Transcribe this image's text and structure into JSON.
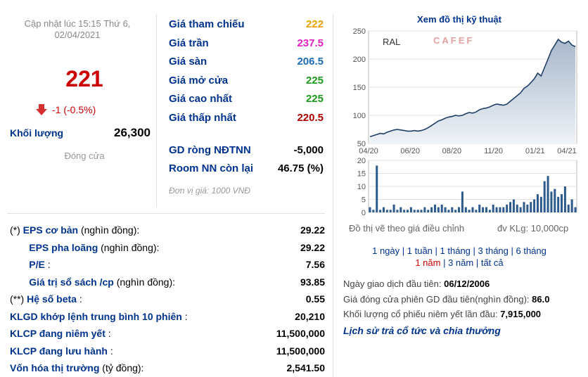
{
  "update": {
    "line1": "Cập nhật lúc 15:15 Thứ 6,",
    "line2": "02/04/2021"
  },
  "price": "221",
  "change": "-1 (-0.5%)",
  "volume": {
    "label": "Khối lượng",
    "value": "26,300"
  },
  "status": "Đóng cửa",
  "prices": [
    {
      "label": "Giá tham chiếu",
      "value": "222",
      "color": "#f0a000"
    },
    {
      "label": "Giá trần",
      "value": "237.5",
      "color": "#e020c0"
    },
    {
      "label": "Giá sàn",
      "value": "206.5",
      "color": "#1a6db5"
    },
    {
      "label": "Giá mở cửa",
      "value": "225",
      "color": "#1a9a1a"
    },
    {
      "label": "Giá cao nhất",
      "value": "225",
      "color": "#1a9a1a"
    },
    {
      "label": "Giá thấp nhất",
      "value": "220.5",
      "color": "#b00000"
    }
  ],
  "foreign": [
    {
      "label": "GD ròng NĐTNN",
      "value": "-5,000"
    },
    {
      "label": "Room NN còn lại",
      "value": "46.75 (%)"
    }
  ],
  "unit_note": "Đơn vị giá: 1000 VNĐ",
  "fundamentals": [
    {
      "prefix": "(*)",
      "label": "EPS cơ bản",
      "suffix": "(nghìn đồng):",
      "value": "29.22"
    },
    {
      "prefix": "",
      "label": "EPS pha loãng",
      "suffix": "(nghìn đồng):",
      "value": "29.22"
    },
    {
      "prefix": "",
      "label": "P/E",
      "suffix": ":",
      "value": "7.56"
    },
    {
      "prefix": "",
      "label": "Giá trị sổ sách /cp",
      "suffix": "(nghìn đồng):",
      "value": "93.85"
    },
    {
      "prefix": "(**)",
      "label": "Hệ số beta",
      "suffix": ":",
      "value": "0.55"
    },
    {
      "prefix": "",
      "label": "KLGD khớp lệnh trung bình 10 phiên",
      "suffix": ":",
      "value": "20,210"
    },
    {
      "prefix": "",
      "label": "KLCP đang niêm yết",
      "suffix": ":",
      "value": "11,500,000"
    },
    {
      "prefix": "",
      "label": "KLCP đang lưu hành",
      "suffix": ":",
      "value": "11,500,000"
    },
    {
      "prefix": "",
      "label": "Vốn hóa thị trường",
      "suffix": "(tỷ đồng):",
      "value": "2,541.50"
    }
  ],
  "chart": {
    "title": "Xem đồ thị kỹ thuật",
    "ticker": "RAL",
    "watermark": "CAFEF",
    "note_left": "Đồ thị vẽ theo giá điều chỉnh",
    "note_right": "đv KLg: 10,000cp"
  },
  "chart_data": {
    "type": "area",
    "x_ticks": [
      "04/20",
      "06/20",
      "08/20",
      "11/20",
      "01/21",
      "04/21"
    ],
    "y_ticks": [
      50,
      100,
      150,
      200,
      250
    ],
    "ylim": [
      50,
      250
    ],
    "price_series": [
      62,
      64,
      66,
      68,
      67,
      70,
      72,
      74,
      75,
      74,
      73,
      72,
      72,
      73,
      72,
      73,
      75,
      78,
      82,
      86,
      90,
      92,
      95,
      97,
      98,
      100,
      99,
      100,
      103,
      105,
      104,
      106,
      110,
      112,
      113,
      115,
      118,
      120,
      119,
      118,
      120,
      125,
      130,
      135,
      140,
      148,
      152,
      158,
      165,
      175,
      170,
      185,
      200,
      215,
      225,
      235,
      230,
      228,
      232,
      225,
      222
    ],
    "volume_ticks": [
      0,
      5,
      10,
      15,
      20
    ],
    "volume_ylim": [
      0,
      20
    ],
    "volume_series": [
      2,
      1,
      18,
      1,
      2,
      1,
      1,
      3,
      1,
      2,
      1,
      1,
      2,
      1,
      1,
      1,
      2,
      1,
      2,
      3,
      2,
      3,
      2,
      1,
      2,
      1,
      2,
      8,
      2,
      1,
      2,
      1,
      3,
      2,
      2,
      1,
      3,
      2,
      2,
      2,
      3,
      4,
      5,
      3,
      2,
      4,
      3,
      4,
      5,
      7,
      6,
      12,
      14,
      8,
      9,
      6,
      7,
      10,
      3,
      5,
      2
    ]
  },
  "periods": {
    "line1": [
      "1 ngày",
      "1 tuần",
      "1 tháng",
      "3 tháng",
      "6 tháng"
    ],
    "line2": [
      "1 năm",
      "3 năm",
      "tất cả"
    ],
    "selected": "1 năm"
  },
  "info": [
    {
      "label": "Ngày giao dịch đầu tiên:",
      "value": "06/12/2006"
    },
    {
      "label": "Giá đóng cửa phiên GD đầu tiên(nghìn đồng):",
      "value": "86.0"
    },
    {
      "label": "Khối lượng cổ phiếu niêm yết lần đầu:",
      "value": "7,915,000"
    }
  ],
  "history_link": "Lịch sử trả cổ tức và chia thưởng"
}
